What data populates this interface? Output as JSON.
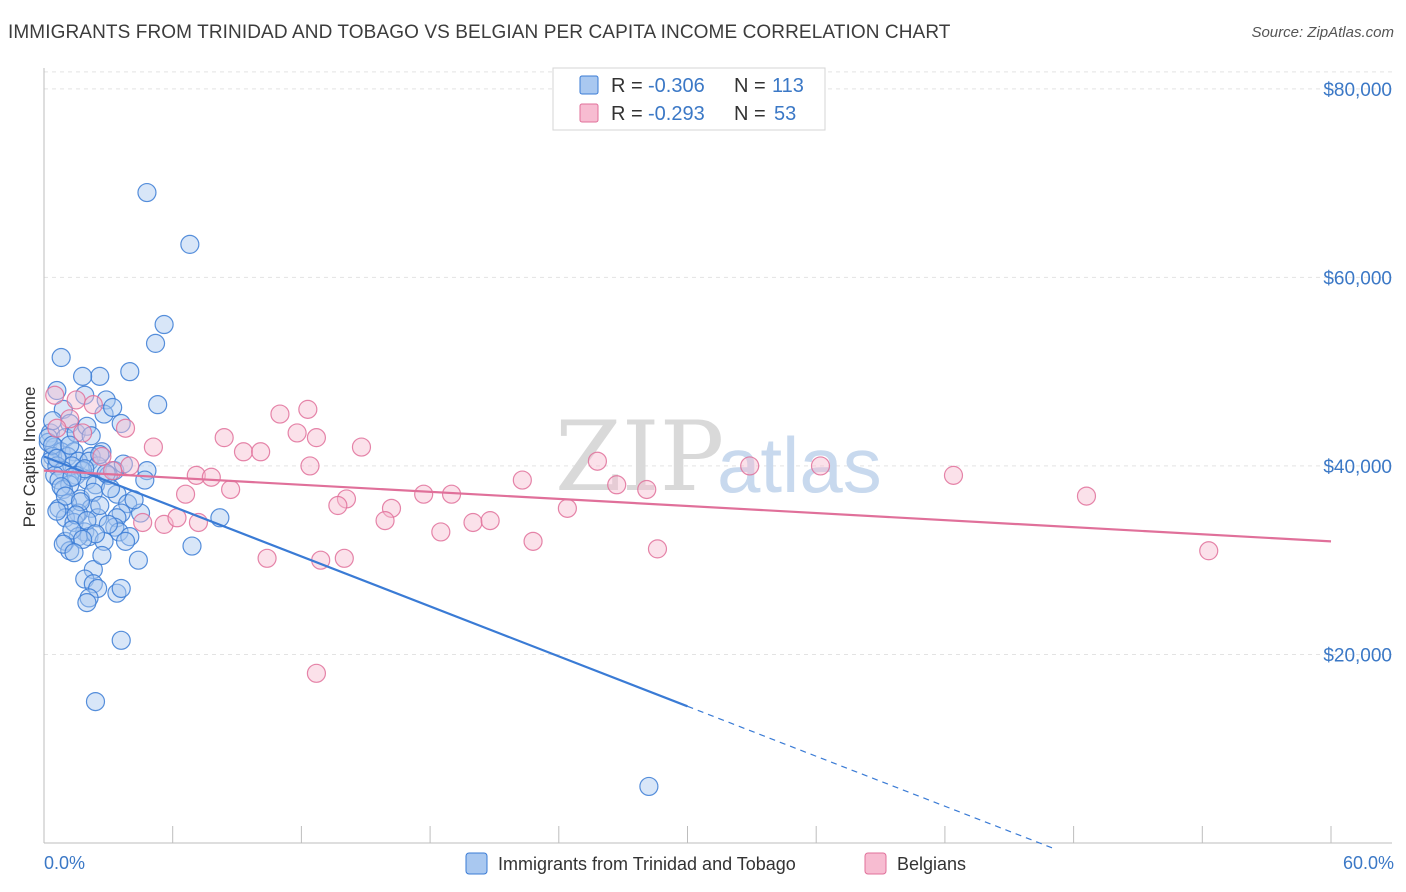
{
  "title": "IMMIGRANTS FROM TRINIDAD AND TOBAGO VS BELGIAN PER CAPITA INCOME CORRELATION CHART",
  "source": "Source: ZipAtlas.com",
  "colors": {
    "blue": "#3a7bd5",
    "blue_fill": "#a9c8f0",
    "pink": "#e0709a",
    "pink_fill": "#f7bcd1",
    "axis_text": "#3b78c6"
  },
  "legend": {
    "r_label": "R =",
    "n_label": "N =",
    "rows": [
      {
        "r": "-0.306",
        "n": "113"
      },
      {
        "r": "-0.293",
        "n": "53"
      }
    ]
  },
  "watermark": {
    "zip": "ZIP",
    "atlas": "atlas"
  },
  "chart_data": {
    "type": "scatter",
    "ylabel": "Per Capita Income",
    "xlim": [
      0,
      60
    ],
    "ylim": [
      0,
      82000
    ],
    "x_tick_labels": [
      "0.0%",
      "60.0%"
    ],
    "y_ticks": [
      {
        "value": 20000,
        "label": "$20,000"
      },
      {
        "value": 40000,
        "label": "$40,000"
      },
      {
        "value": 60000,
        "label": "$60,000"
      },
      {
        "value": 80000,
        "label": "$80,000"
      }
    ],
    "grid": true,
    "legend_placement": "top-center",
    "series": [
      {
        "name": "Immigrants from Trinidad and Tobago",
        "color": "#3a7bd5",
        "trend": {
          "x0": 0,
          "y0": 41000,
          "x1": 30,
          "y1": 14500,
          "dash_to_x": 47
        },
        "points": [
          [
            4.8,
            69000
          ],
          [
            6.8,
            63500
          ],
          [
            5.6,
            55000
          ],
          [
            5.2,
            53000
          ],
          [
            0.8,
            51500
          ],
          [
            4.0,
            50000
          ],
          [
            2.6,
            49500
          ],
          [
            1.8,
            49500
          ],
          [
            0.6,
            48000
          ],
          [
            1.9,
            47500
          ],
          [
            2.9,
            47000
          ],
          [
            5.3,
            46500
          ],
          [
            0.9,
            46000
          ],
          [
            2.8,
            45500
          ],
          [
            1.2,
            44500
          ],
          [
            3.6,
            44500
          ],
          [
            0.3,
            43500
          ],
          [
            1.0,
            43000
          ],
          [
            0.2,
            42500
          ],
          [
            0.5,
            42000
          ],
          [
            0.8,
            41500
          ],
          [
            1.4,
            41500
          ],
          [
            2.7,
            41500
          ],
          [
            0.4,
            41000
          ],
          [
            1.1,
            41000
          ],
          [
            2.2,
            41000
          ],
          [
            0.3,
            40500
          ],
          [
            1.6,
            40500
          ],
          [
            2.1,
            40500
          ],
          [
            0.6,
            40000
          ],
          [
            1.3,
            40000
          ],
          [
            2.5,
            40000
          ],
          [
            0.9,
            39500
          ],
          [
            1.8,
            39500
          ],
          [
            3.3,
            39500
          ],
          [
            4.8,
            39500
          ],
          [
            0.5,
            39000
          ],
          [
            1.5,
            39000
          ],
          [
            3.0,
            39000
          ],
          [
            0.7,
            38500
          ],
          [
            2.0,
            38500
          ],
          [
            4.7,
            38500
          ],
          [
            1.2,
            38000
          ],
          [
            2.4,
            38000
          ],
          [
            0.9,
            37500
          ],
          [
            3.4,
            37000
          ],
          [
            1.7,
            36500
          ],
          [
            1.1,
            36000
          ],
          [
            3.9,
            36000
          ],
          [
            2.2,
            35500
          ],
          [
            0.7,
            35500
          ],
          [
            1.6,
            35000
          ],
          [
            3.6,
            35000
          ],
          [
            4.5,
            35000
          ],
          [
            1.0,
            34500
          ],
          [
            2.5,
            34500
          ],
          [
            3.4,
            34500
          ],
          [
            8.2,
            34500
          ],
          [
            1.4,
            34000
          ],
          [
            3.3,
            33500
          ],
          [
            1.9,
            33000
          ],
          [
            3.5,
            33000
          ],
          [
            2.1,
            32500
          ],
          [
            4.0,
            32500
          ],
          [
            1.6,
            32500
          ],
          [
            2.8,
            32000
          ],
          [
            1.0,
            32000
          ],
          [
            3.8,
            32000
          ],
          [
            6.9,
            31500
          ],
          [
            1.2,
            31000
          ],
          [
            4.4,
            30000
          ],
          [
            2.3,
            29000
          ],
          [
            1.9,
            28000
          ],
          [
            2.3,
            27500
          ],
          [
            2.5,
            27000
          ],
          [
            3.4,
            26500
          ],
          [
            3.6,
            27000
          ],
          [
            2.1,
            26000
          ],
          [
            2.0,
            25500
          ],
          [
            3.6,
            21500
          ],
          [
            2.4,
            15000
          ],
          [
            28.2,
            6000
          ],
          [
            0.2,
            43000
          ],
          [
            1.5,
            43500
          ],
          [
            0.4,
            42200
          ],
          [
            2.6,
            41200
          ],
          [
            0.6,
            40800
          ],
          [
            1.9,
            39700
          ],
          [
            2.9,
            39200
          ],
          [
            1.3,
            38800
          ],
          [
            0.8,
            37800
          ],
          [
            2.3,
            37200
          ],
          [
            1.0,
            36800
          ],
          [
            1.7,
            36200
          ],
          [
            2.6,
            35800
          ],
          [
            0.6,
            35200
          ],
          [
            1.5,
            34800
          ],
          [
            2.0,
            34200
          ],
          [
            3.0,
            33800
          ],
          [
            1.3,
            33200
          ],
          [
            2.4,
            32800
          ],
          [
            1.8,
            32200
          ],
          [
            0.9,
            31700
          ],
          [
            1.4,
            30800
          ],
          [
            2.7,
            30500
          ],
          [
            3.1,
            37600
          ],
          [
            4.2,
            36400
          ],
          [
            2.0,
            44200
          ],
          [
            3.2,
            46200
          ],
          [
            0.4,
            44800
          ],
          [
            1.2,
            42200
          ],
          [
            2.2,
            43200
          ],
          [
            3.7,
            40200
          ]
        ]
      },
      {
        "name": "Belgians",
        "color": "#e0709a",
        "trend": {
          "x0": 0,
          "y0": 39500,
          "x1": 60,
          "y1": 32000
        },
        "points": [
          [
            0.5,
            47500
          ],
          [
            1.5,
            47000
          ],
          [
            2.3,
            46500
          ],
          [
            1.2,
            45000
          ],
          [
            0.6,
            44000
          ],
          [
            1.8,
            43500
          ],
          [
            3.8,
            44000
          ],
          [
            11.0,
            45500
          ],
          [
            12.3,
            46000
          ],
          [
            8.4,
            43000
          ],
          [
            11.8,
            43500
          ],
          [
            12.7,
            43000
          ],
          [
            9.3,
            41500
          ],
          [
            14.8,
            42000
          ],
          [
            10.1,
            41500
          ],
          [
            2.7,
            41000
          ],
          [
            5.1,
            42000
          ],
          [
            4.0,
            40000
          ],
          [
            3.2,
            39500
          ],
          [
            12.4,
            40000
          ],
          [
            7.1,
            39000
          ],
          [
            7.8,
            38800
          ],
          [
            25.8,
            40500
          ],
          [
            32.9,
            40000
          ],
          [
            36.2,
            40000
          ],
          [
            42.4,
            39000
          ],
          [
            22.3,
            38500
          ],
          [
            26.7,
            38000
          ],
          [
            28.1,
            37500
          ],
          [
            8.7,
            37500
          ],
          [
            6.6,
            37000
          ],
          [
            17.7,
            37000
          ],
          [
            19.0,
            37000
          ],
          [
            14.1,
            36500
          ],
          [
            13.7,
            35800
          ],
          [
            16.2,
            35500
          ],
          [
            24.4,
            35500
          ],
          [
            7.2,
            34000
          ],
          [
            4.6,
            34000
          ],
          [
            5.6,
            33800
          ],
          [
            15.9,
            34200
          ],
          [
            20.0,
            34000
          ],
          [
            20.8,
            34200
          ],
          [
            18.5,
            33000
          ],
          [
            22.8,
            32000
          ],
          [
            28.6,
            31200
          ],
          [
            10.4,
            30200
          ],
          [
            14.0,
            30200
          ],
          [
            12.9,
            30000
          ],
          [
            48.6,
            36800
          ],
          [
            54.3,
            31000
          ],
          [
            12.7,
            18000
          ],
          [
            6.2,
            34500
          ]
        ]
      }
    ]
  },
  "bottom_legend": [
    {
      "label": "Immigrants from Trinidad and Tobago"
    },
    {
      "label": "Belgians"
    }
  ]
}
